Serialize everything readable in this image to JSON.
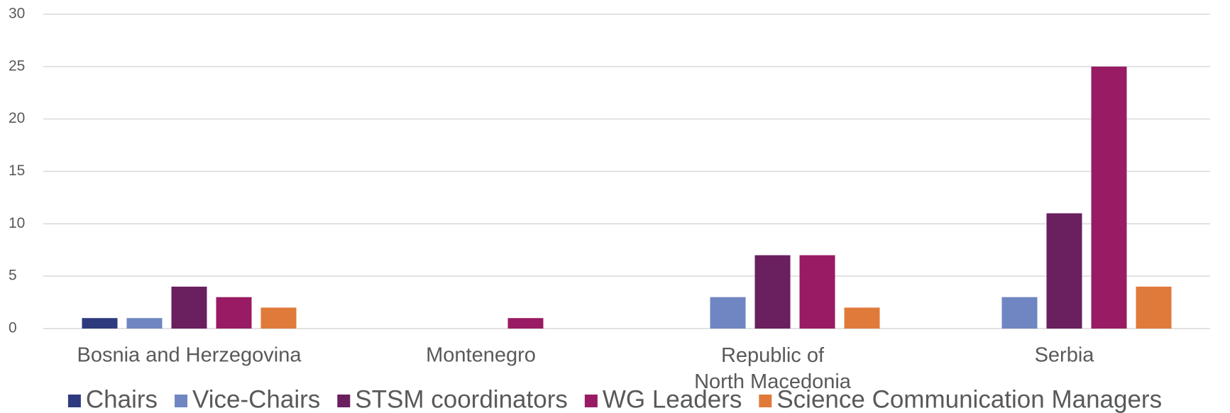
{
  "chart_data": {
    "type": "bar",
    "categories": [
      "Bosnia and Herzegovina",
      "Montenegro",
      "Republic of North Macedonia",
      "Serbia"
    ],
    "series": [
      {
        "name": "Chairs",
        "color": "#2e3a7e",
        "values": [
          1,
          0,
          0,
          0
        ]
      },
      {
        "name": "Vice-Chairs",
        "color": "#6f86c2",
        "values": [
          1,
          0,
          3,
          3
        ]
      },
      {
        "name": "STSM coordinators",
        "color": "#6a1f5f",
        "values": [
          4,
          0,
          7,
          11
        ]
      },
      {
        "name": "WG Leaders",
        "color": "#981b63",
        "values": [
          3,
          1,
          7,
          25
        ]
      },
      {
        "name": "Science Communication Managers",
        "color": "#e07a3a",
        "values": [
          2,
          0,
          2,
          4
        ]
      }
    ],
    "ylim": [
      0,
      30
    ],
    "yticks": [
      0,
      5,
      10,
      15,
      20,
      25,
      30
    ],
    "grid": true,
    "legend": "bottom"
  }
}
